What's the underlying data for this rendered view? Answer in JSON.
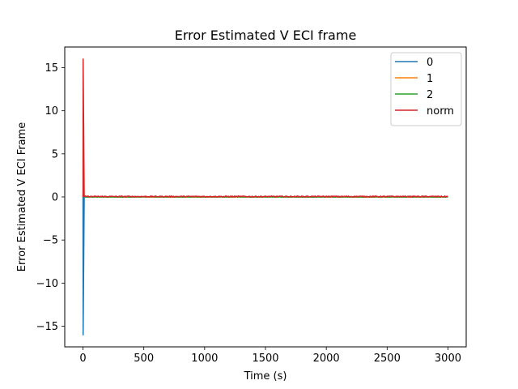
{
  "chart_data": {
    "type": "line",
    "title": "Error Estimated V ECI frame",
    "xlabel": "Time (s)",
    "ylabel": "Error Estimated V ECI Frame",
    "xlim": [
      -150,
      3150
    ],
    "ylim": [
      -17.4,
      17.4
    ],
    "xticks": [
      0,
      500,
      1000,
      1500,
      2000,
      2500,
      3000
    ],
    "xtick_labels": [
      "0",
      "500",
      "1000",
      "1500",
      "2000",
      "2500",
      "3000"
    ],
    "yticks": [
      -15,
      -10,
      -5,
      0,
      5,
      10,
      15
    ],
    "ytick_labels": [
      "−15",
      "−10",
      "−5",
      "0",
      "5",
      "10",
      "15"
    ],
    "grid": false,
    "legend_position": "top-right",
    "series": [
      {
        "name": "0",
        "color": "#1f77b4",
        "x": [
          0,
          1,
          10,
          3000
        ],
        "y": [
          0,
          -16,
          0,
          0
        ],
        "noise": 0.03
      },
      {
        "name": "1",
        "color": "#ff7f0e",
        "x": [
          0,
          1,
          10,
          3000
        ],
        "y": [
          0,
          0.5,
          0,
          0
        ],
        "noise": 0.03
      },
      {
        "name": "2",
        "color": "#2ca02c",
        "x": [
          0,
          1,
          10,
          3000
        ],
        "y": [
          0,
          0.3,
          0,
          0
        ],
        "noise": 0.03
      },
      {
        "name": "norm",
        "color": "#d62728",
        "x": [
          0,
          1,
          10,
          3000
        ],
        "y": [
          0,
          16,
          0.05,
          0.05
        ],
        "noise": 0.06
      }
    ]
  }
}
